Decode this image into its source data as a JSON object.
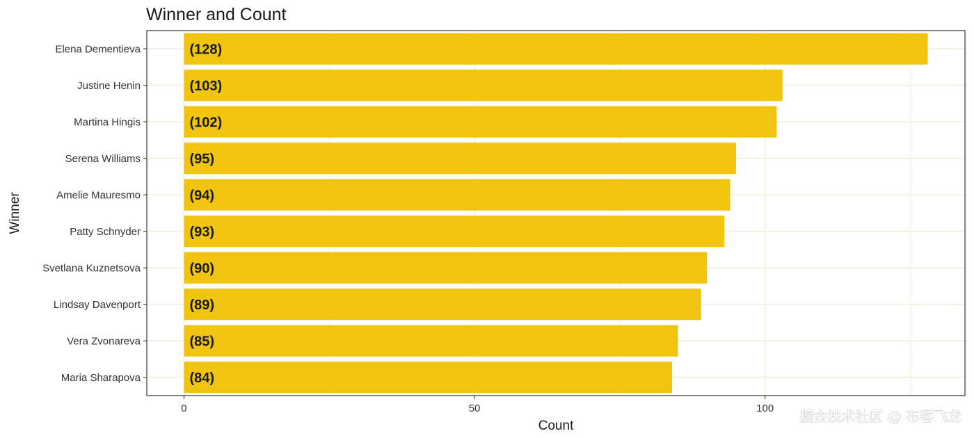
{
  "chart_data": {
    "type": "bar",
    "orientation": "horizontal",
    "title": "Winner and Count",
    "xlabel": "Count",
    "ylabel": "Winner",
    "categories": [
      "Elena Dementieva",
      "Justine Henin",
      "Martina Hingis",
      "Serena Williams",
      "Amelie Mauresmo",
      "Patty Schnyder",
      "Svetlana Kuznetsova",
      "Lindsay Davenport",
      "Vera Zvonareva",
      "Maria Sharapova"
    ],
    "values": [
      128,
      103,
      102,
      95,
      94,
      93,
      90,
      89,
      85,
      84
    ],
    "data_labels": [
      "(128)",
      "(103)",
      "(102)",
      "(95)",
      "(94)",
      "(93)",
      "(90)",
      "(89)",
      "(85)",
      "(84)"
    ],
    "x_ticks": [
      "0",
      "50",
      "100"
    ],
    "xlim": [
      -6.4,
      134.4
    ],
    "bar_color": "#f1c40f",
    "grid": true,
    "grid_color": "#eef2da",
    "legend": false
  },
  "watermark": "掘金技术社区 @ 布客飞龙"
}
